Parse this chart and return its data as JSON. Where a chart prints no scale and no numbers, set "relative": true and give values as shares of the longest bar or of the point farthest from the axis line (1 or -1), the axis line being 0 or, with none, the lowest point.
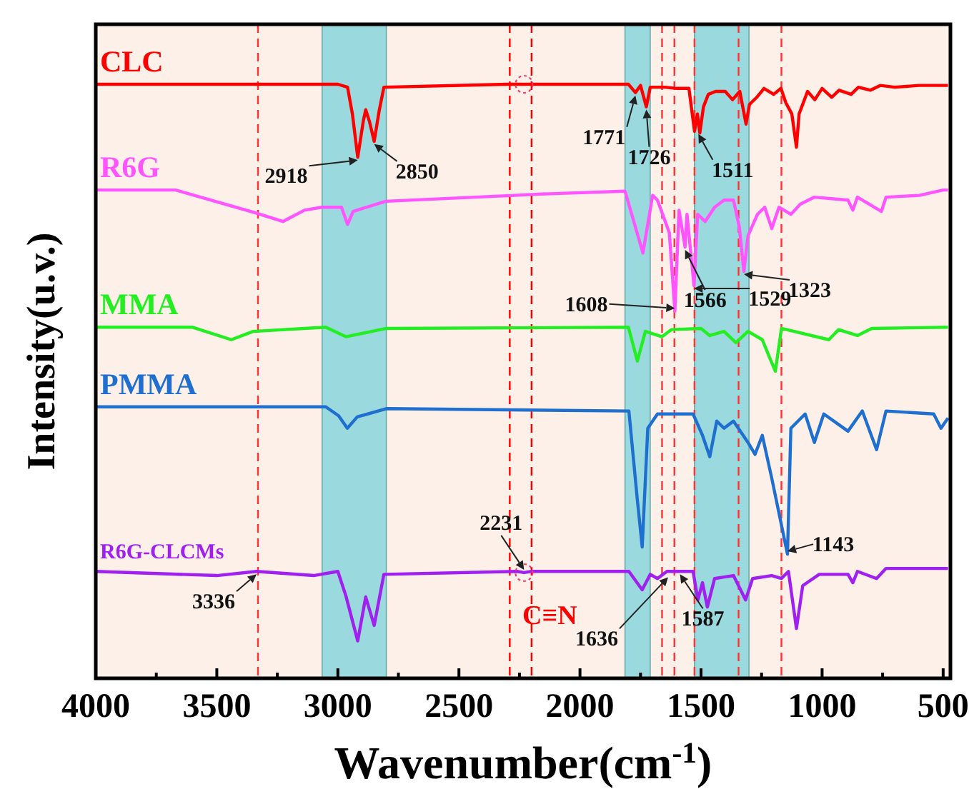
{
  "chart_data": {
    "type": "line",
    "relative": true,
    "xlabel": "Wavenumber(cm$^{-1}$)",
    "ylabel": "Intensity(u.v.)",
    "xlim": [
      4000,
      470
    ],
    "xticks": [
      4000,
      {
        "value": 3750,
        "label": null
      },
      3500,
      {
        "value": 3250,
        "label": null
      },
      3000,
      {
        "value": 2750,
        "label": null
      },
      2500,
      {
        "value": 2250,
        "label": null
      },
      2000,
      {
        "value": 1750,
        "label": null
      },
      1500,
      {
        "value": 1250,
        "label": null
      },
      1000,
      {
        "value": 750,
        "label": null
      },
      500
    ],
    "tick_labels": "x",
    "grid": false,
    "marker": "none",
    "line_style": "solid",
    "series": [
      {
        "name": "CLC",
        "color": "#ff0000",
        "x": [
          4000,
          3000,
          2960,
          2940,
          2918,
          2895,
          2885,
          2870,
          2850,
          2830,
          2810,
          2300,
          1800,
          1771,
          1750,
          1726,
          1710,
          1650,
          1600,
          1550,
          1527,
          1515,
          1505,
          1490,
          1470,
          1440,
          1400,
          1370,
          1340,
          1314,
          1300,
          1270,
          1240,
          1200,
          1170,
          1150,
          1125,
          1106,
          1095,
          1060,
          1030,
          1000,
          960,
          930,
          880,
          850,
          800,
          760,
          700,
          600,
          480
        ],
        "values": [
          1.0,
          1.0,
          0.995,
          0.95,
          0.877,
          0.938,
          0.957,
          0.938,
          0.904,
          0.954,
          0.995,
          1.0,
          1.0,
          0.986,
          0.998,
          0.962,
          0.995,
          0.995,
          0.993,
          0.993,
          0.921,
          0.95,
          0.918,
          0.962,
          0.983,
          0.988,
          0.988,
          0.974,
          0.988,
          0.933,
          0.966,
          0.978,
          0.993,
          0.983,
          0.993,
          0.969,
          0.95,
          0.894,
          0.95,
          0.988,
          0.974,
          0.993,
          0.978,
          0.99,
          0.983,
          0.995,
          0.99,
          0.998,
          0.995,
          0.998,
          0.998
        ]
      },
      {
        "name": "R6G",
        "color": "#ff55ff",
        "x": [
          4000,
          3670,
          3345,
          3227,
          3138,
          3067,
          2985,
          2960,
          2937,
          2802,
          2270,
          2170,
          1814,
          1740,
          1700,
          1680,
          1631,
          1608,
          1591,
          1566,
          1558,
          1529,
          1514,
          1483,
          1444,
          1405,
          1366,
          1342,
          1323,
          1306,
          1267,
          1237,
          1208,
          1178,
          1129,
          1090,
          1032,
          893,
          873,
          854,
          755,
          736,
          598,
          500,
          480
        ],
        "values": [
          0.822,
          0.822,
          0.784,
          0.769,
          0.788,
          0.793,
          0.793,
          0.764,
          0.786,
          0.803,
          0.813,
          0.815,
          0.82,
          0.716,
          0.813,
          0.805,
          0.75,
          0.618,
          0.788,
          0.726,
          0.781,
          0.661,
          0.781,
          0.769,
          0.793,
          0.805,
          0.805,
          0.76,
          0.685,
          0.745,
          0.781,
          0.793,
          0.757,
          0.793,
          0.781,
          0.798,
          0.81,
          0.805,
          0.788,
          0.81,
          0.786,
          0.81,
          0.813,
          0.822,
          0.822
        ]
      },
      {
        "name": "MMA",
        "color": "#22ee22",
        "x": [
          4000,
          3600,
          3440,
          3350,
          3050,
          2967,
          2800,
          1800,
          1763,
          1730,
          1661,
          1622,
          1500,
          1464,
          1405,
          1356,
          1306,
          1247,
          1218,
          1193,
          1168,
          972,
          932,
          854,
          795,
          480
        ],
        "values": [
          0.591,
          0.591,
          0.57,
          0.584,
          0.591,
          0.575,
          0.589,
          0.591,
          0.534,
          0.584,
          0.575,
          0.587,
          0.589,
          0.577,
          0.584,
          0.565,
          0.584,
          0.57,
          0.541,
          0.517,
          0.589,
          0.57,
          0.587,
          0.577,
          0.589,
          0.591
        ]
      },
      {
        "name": "PMMA",
        "color": "#1f6fd0",
        "x": [
          4000,
          3050,
          2997,
          2961,
          2920,
          2800,
          1798,
          1763,
          1743,
          1720,
          1680,
          1533,
          1494,
          1464,
          1435,
          1405,
          1366,
          1306,
          1277,
          1247,
          1208,
          1143,
          1129,
          1070,
          1032,
          993,
          893,
          834,
          775,
          736,
          539,
          509,
          480
        ],
        "values": [
          0.457,
          0.457,
          0.442,
          0.421,
          0.44,
          0.454,
          0.45,
          0.3,
          0.221,
          0.421,
          0.445,
          0.445,
          0.409,
          0.373,
          0.433,
          0.421,
          0.433,
          0.397,
          0.377,
          0.409,
          0.337,
          0.209,
          0.421,
          0.445,
          0.397,
          0.445,
          0.416,
          0.45,
          0.385,
          0.45,
          0.445,
          0.421,
          0.438
        ]
      },
      {
        "name": "R6G-CLCMs",
        "color": "#a020f0",
        "x": [
          4000,
          3500,
          3336,
          3100,
          3000,
          2967,
          2918,
          2885,
          2850,
          2810,
          2260,
          2231,
          2200,
          1798,
          1743,
          1710,
          1680,
          1641,
          1533,
          1513,
          1494,
          1474,
          1444,
          1366,
          1316,
          1287,
          1208,
          1168,
          1139,
          1106,
          1080,
          1012,
          893,
          873,
          854,
          775,
          736,
          480
        ],
        "values": [
          0.18,
          0.173,
          0.18,
          0.173,
          0.18,
          0.139,
          0.063,
          0.137,
          0.089,
          0.175,
          0.18,
          0.178,
          0.18,
          0.18,
          0.149,
          0.175,
          0.168,
          0.18,
          0.18,
          0.132,
          0.161,
          0.12,
          0.168,
          0.173,
          0.132,
          0.168,
          0.173,
          0.168,
          0.18,
          0.084,
          0.156,
          0.175,
          0.175,
          0.161,
          0.18,
          0.168,
          0.185,
          0.185
        ]
      },
      {
        "type": "scatter",
        "color": "#ff3366",
        "marker": "circle",
        "x": [
          2231,
          2231
        ],
        "values": [
          1.0,
          0.178
        ]
      }
    ],
    "bands": [
      {
        "axis": "x",
        "from": 3065,
        "to": 2800,
        "color": "#8fd6dc"
      },
      {
        "axis": "x",
        "from": 1814,
        "to": 1710,
        "color": "#8fd6dc"
      },
      {
        "axis": "x",
        "from": 1527,
        "to": 1302,
        "color": "#8fd6dc"
      }
    ],
    "ref_lines": [
      {
        "axis": "x",
        "value": 3330,
        "color": "#ff3333",
        "line_style": "dashed"
      },
      {
        "axis": "x",
        "value": 2290,
        "color": "#ff0000",
        "line_style": "dashed"
      },
      {
        "axis": "x",
        "value": 2200,
        "color": "#ff0000",
        "line_style": "dashed"
      },
      {
        "axis": "x",
        "value": 1661,
        "color": "#ff3333",
        "line_style": "dashed"
      },
      {
        "axis": "x",
        "value": 1610,
        "color": "#ff3333",
        "line_style": "dashed"
      },
      {
        "axis": "x",
        "value": 1527,
        "color": "#ff3333",
        "line_style": "dashed"
      },
      {
        "axis": "x",
        "value": 1345,
        "color": "#ff3333",
        "line_style": "dashed"
      },
      {
        "axis": "x",
        "value": 1168,
        "color": "#ff3333",
        "line_style": "dashed"
      }
    ],
    "annotations": [
      {
        "text": "2918",
        "x": 2918,
        "y": 0.877
      },
      {
        "text": "2850",
        "x": 2850,
        "y": 0.904
      },
      {
        "text": "1771",
        "x": 1771,
        "y": 0.986
      },
      {
        "text": "1726",
        "x": 1726,
        "y": 0.962
      },
      {
        "text": "1511",
        "x": 1511,
        "y": 0.921
      },
      {
        "text": "1608",
        "x": 1608,
        "y": 0.618
      },
      {
        "text": "1566",
        "x": 1566,
        "y": 0.726
      },
      {
        "text": "1529",
        "x": 1529,
        "y": 0.661
      },
      {
        "text": "1323",
        "x": 1323,
        "y": 0.685
      },
      {
        "text": "3336",
        "x": 3336,
        "y": 0.18
      },
      {
        "text": "2231",
        "x": 2231,
        "y": 0.178
      },
      {
        "text": "C≡N",
        "x": 2231,
        "y": 0.178
      },
      {
        "text": "1636",
        "x": 1636,
        "y": 0.175
      },
      {
        "text": "1587",
        "x": 1587,
        "y": 0.18
      },
      {
        "text": "1143",
        "x": 1143,
        "y": 0.209
      }
    ]
  }
}
